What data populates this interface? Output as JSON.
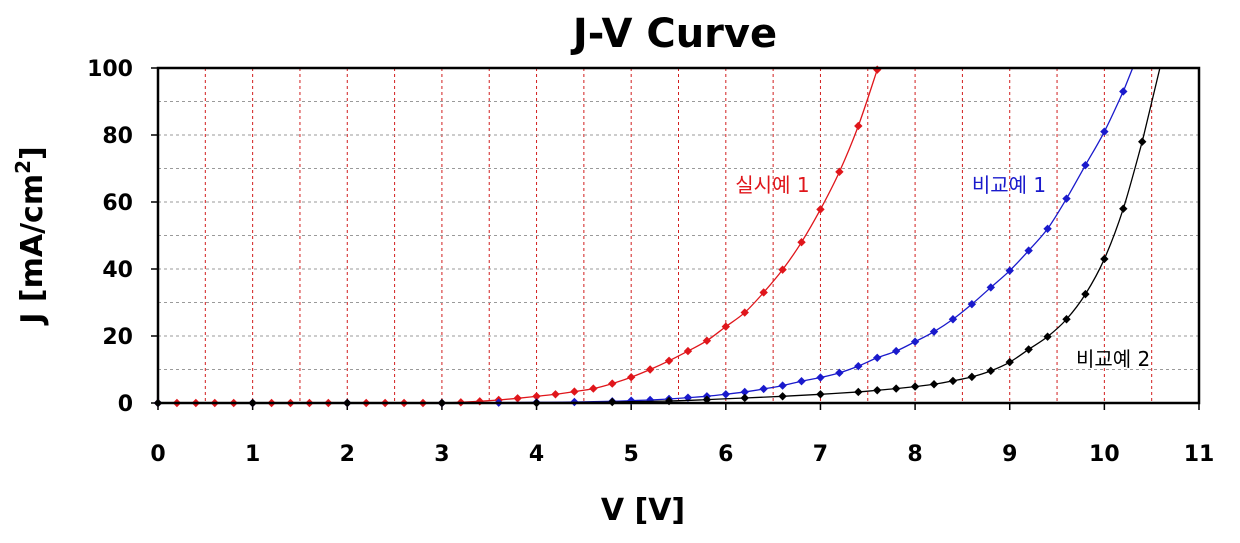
{
  "chart_data": {
    "type": "line",
    "title": "J-V Curve",
    "xlabel": "V [V]",
    "ylabel": "J [mA/cm2]",
    "xlim": [
      0,
      11
    ],
    "ylim": [
      0,
      100
    ],
    "xticks": [
      "0",
      "1",
      "2",
      "3",
      "4",
      "5",
      "6",
      "7",
      "8",
      "9",
      "10",
      "11"
    ],
    "yticks": [
      "0",
      "20",
      "40",
      "60",
      "80",
      "100"
    ],
    "grid": true,
    "series": [
      {
        "name": "실시예 1",
        "color": "#e0161b",
        "x": [
          0,
          0.2,
          0.4,
          0.6,
          0.8,
          1.0,
          1.2,
          1.4,
          1.6,
          1.8,
          2.0,
          2.2,
          2.4,
          2.6,
          2.8,
          3.0,
          3.2,
          3.4,
          3.6,
          3.8,
          4.0,
          4.2,
          4.4,
          4.6,
          4.8,
          5.0,
          5.2,
          5.4,
          5.6,
          5.8,
          6.0,
          6.2,
          6.4,
          6.6,
          6.8,
          7.0,
          7.2,
          7.4,
          7.6
        ],
        "y": [
          0,
          0,
          0,
          0,
          0,
          0,
          0,
          0,
          0,
          0,
          0,
          0,
          0,
          0,
          0,
          0,
          0.2,
          0.5,
          0.9,
          1.4,
          2.0,
          2.6,
          3.4,
          4.3,
          5.8,
          7.7,
          10.0,
          12.6,
          15.5,
          18.6,
          22.8,
          27.0,
          33.0,
          39.8,
          48.0,
          57.8,
          69.0,
          82.7,
          99.5
        ],
        "label_position": "above-right"
      },
      {
        "name": "비교예 1",
        "color": "#1a1acc",
        "x": [
          0,
          1,
          2,
          3,
          3.6,
          4.0,
          4.4,
          4.8,
          5.0,
          5.2,
          5.4,
          5.6,
          5.8,
          6.0,
          6.2,
          6.4,
          6.6,
          6.8,
          7.0,
          7.2,
          7.4,
          7.6,
          7.8,
          8.0,
          8.2,
          8.4,
          8.6,
          8.8,
          9.0,
          9.2,
          9.4,
          9.6,
          9.8,
          10.0,
          10.2
        ],
        "y": [
          0,
          0,
          0,
          0,
          0.1,
          0.2,
          0.3,
          0.5,
          0.7,
          0.9,
          1.2,
          1.6,
          2.0,
          2.6,
          3.3,
          4.2,
          5.2,
          6.5,
          7.6,
          9.0,
          11.0,
          13.5,
          15.5,
          18.3,
          21.3,
          25.0,
          29.5,
          34.5,
          39.5,
          45.5,
          52.0,
          61.0,
          71.0,
          81.0,
          93.0
        ]
      },
      {
        "name": "비교예 2",
        "color": "#000000",
        "x": [
          0,
          1,
          2,
          3,
          4,
          4.8,
          5.4,
          5.8,
          6.2,
          6.6,
          7.0,
          7.4,
          7.6,
          7.8,
          8.0,
          8.2,
          8.4,
          8.6,
          8.8,
          9.0,
          9.2,
          9.4,
          9.6,
          9.8,
          10.0,
          10.2,
          10.4
        ],
        "y": [
          0,
          0,
          0,
          0,
          0,
          0.3,
          0.6,
          1.0,
          1.5,
          2.0,
          2.6,
          3.3,
          3.8,
          4.3,
          4.9,
          5.6,
          6.6,
          7.8,
          9.6,
          12.2,
          16.0,
          19.8,
          25.0,
          32.5,
          43.0,
          58.0,
          78.0
        ]
      }
    ]
  }
}
